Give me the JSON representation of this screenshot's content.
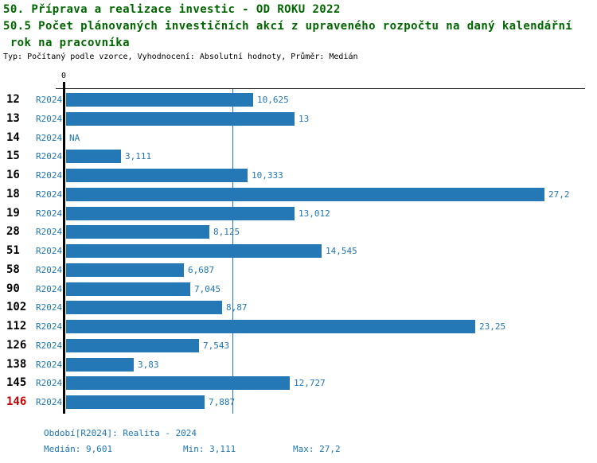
{
  "header": {
    "line1": "50. Příprava a realizace investic - OD ROKU 2022",
    "line2": "50.5 Počet plánovaných investičních akcí z upraveného rozpočtu na daný kalendářní",
    "line3": " rok na pracovníka",
    "meta": "Typ: Počítaný podle vzorce, Vyhodnocení: Absolutní hodnoty, Průměr: Medián"
  },
  "colors": {
    "bar": "#2478b6",
    "text_blue": "#1f76b4",
    "highlight_red": "#cc0000",
    "heading_green": "#006600"
  },
  "chart_data": {
    "type": "bar",
    "orientation": "horizontal",
    "title": "50.5 Počet plánovaných investičních akcí z upraveného rozpočtu na daný kalendářní rok na pracovníka",
    "origin_label": "0",
    "xlim": [
      0,
      29.6
    ],
    "median_value": 9.601,
    "series_label": "R2024",
    "legend_position": "none",
    "grid": false,
    "categories": [
      "12",
      "13",
      "14",
      "15",
      "16",
      "18",
      "19",
      "28",
      "51",
      "58",
      "90",
      "102",
      "112",
      "126",
      "138",
      "145",
      "146"
    ],
    "rows": [
      {
        "id": "12",
        "period": "R2024",
        "value": 10.625,
        "label": "10,625",
        "highlight": false
      },
      {
        "id": "13",
        "period": "R2024",
        "value": 13,
        "label": "13",
        "highlight": false
      },
      {
        "id": "14",
        "period": "R2024",
        "value": null,
        "label": "NA",
        "highlight": false
      },
      {
        "id": "15",
        "period": "R2024",
        "value": 3.111,
        "label": "3,111",
        "highlight": false
      },
      {
        "id": "16",
        "period": "R2024",
        "value": 10.333,
        "label": "10,333",
        "highlight": false
      },
      {
        "id": "18",
        "period": "R2024",
        "value": 27.2,
        "label": "27,2",
        "highlight": false
      },
      {
        "id": "19",
        "period": "R2024",
        "value": 13.012,
        "label": "13,012",
        "highlight": false
      },
      {
        "id": "28",
        "period": "R2024",
        "value": 8.125,
        "label": "8,125",
        "highlight": false
      },
      {
        "id": "51",
        "period": "R2024",
        "value": 14.545,
        "label": "14,545",
        "highlight": false
      },
      {
        "id": "58",
        "period": "R2024",
        "value": 6.687,
        "label": "6,687",
        "highlight": false
      },
      {
        "id": "90",
        "period": "R2024",
        "value": 7.045,
        "label": "7,045",
        "highlight": false
      },
      {
        "id": "102",
        "period": "R2024",
        "value": 8.87,
        "label": "8,87",
        "highlight": false
      },
      {
        "id": "112",
        "period": "R2024",
        "value": 23.25,
        "label": "23,25",
        "highlight": false
      },
      {
        "id": "126",
        "period": "R2024",
        "value": 7.543,
        "label": "7,543",
        "highlight": false
      },
      {
        "id": "138",
        "period": "R2024",
        "value": 3.83,
        "label": "3,83",
        "highlight": false
      },
      {
        "id": "145",
        "period": "R2024",
        "value": 12.727,
        "label": "12,727",
        "highlight": false
      },
      {
        "id": "146",
        "period": "R2024",
        "value": 7.887,
        "label": "7,887",
        "highlight": true
      }
    ]
  },
  "footer": {
    "period": "Období[R2024]: Realita - 2024",
    "median": "Medián: 9,601",
    "min": "Min: 3,111",
    "max": "Max: 27,2"
  }
}
